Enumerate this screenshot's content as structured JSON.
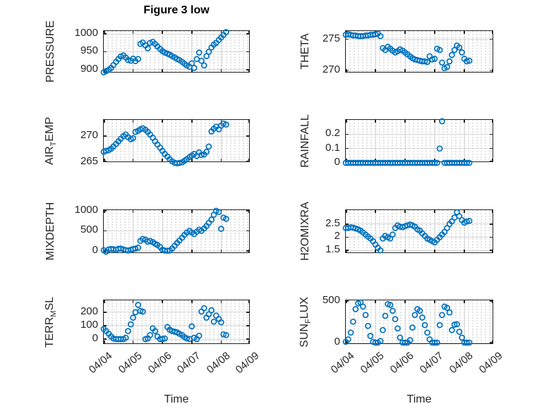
{
  "figure_title": "Figure 3 low",
  "style": {
    "marker_color": "#0072BD",
    "axis_color": "#262626",
    "grid_color": "#d6d6d6",
    "minor_dot_color": "#d9d9d9",
    "background": "#ffffff"
  },
  "x_axis": {
    "xlim": [
      4,
      9
    ],
    "ticks": [
      4,
      5,
      6,
      7,
      8,
      9
    ],
    "tick_labels": [
      "04/04",
      "04/05",
      "04/06",
      "04/07",
      "04/08",
      "04/09"
    ],
    "title": "Time"
  },
  "chart_data": {
    "type": "scatter",
    "title": "Figure 3 low",
    "xlabel": "Time",
    "x": [
      4,
      4.08,
      4.17,
      4.25,
      4.33,
      4.42,
      4.5,
      4.58,
      4.67,
      4.75,
      4.83,
      4.92,
      5,
      5.08,
      5.17,
      5.25,
      5.33,
      5.42,
      5.5,
      5.58,
      5.67,
      5.75,
      5.83,
      5.92,
      6,
      6.08,
      6.17,
      6.25,
      6.33,
      6.42,
      6.5,
      6.58,
      6.67,
      6.75,
      6.83,
      6.92,
      7,
      7.08,
      7.17,
      7.25,
      7.33,
      7.42,
      7.5,
      7.58,
      7.67,
      7.75,
      7.83,
      7.92,
      8,
      8.08,
      8.17
    ],
    "series": [
      {
        "name": "PRESSURE",
        "row": 0,
        "col": 0,
        "label_parts": [
          {
            "text": "PRESSURE"
          }
        ],
        "ylim": [
          890,
          1008
        ],
        "yticks": [
          900,
          950,
          1000
        ],
        "ytick_labels": [
          "900",
          "950",
          "1000"
        ],
        "y": [
          893,
          896,
          900,
          905,
          913,
          922,
          930,
          937,
          940,
          934,
          927,
          925,
          931,
          924,
          930,
          972,
          976,
          968,
          960,
          975,
          978,
          972,
          965,
          958,
          952,
          948,
          945,
          942,
          938,
          934,
          930,
          927,
          922,
          917,
          912,
          908,
          918,
          905,
          930,
          948,
          925,
          912,
          938,
          950,
          962,
          970,
          975,
          983,
          990,
          997,
          1005
        ]
      },
      {
        "name": "THETA",
        "row": 0,
        "col": 1,
        "label_parts": [
          {
            "text": "THETA"
          }
        ],
        "ylim": [
          269.6,
          276.3
        ],
        "yticks": [
          270,
          275
        ],
        "ytick_labels": [
          "270",
          "275"
        ],
        "y": [
          275.7,
          275.8,
          275.7,
          275.6,
          275.6,
          275.5,
          275.5,
          275.5,
          275.6,
          275.6,
          275.7,
          275.7,
          275.8,
          275.9,
          275.5,
          273.6,
          273.3,
          273.8,
          273.5,
          273.2,
          272.9,
          273.1,
          273.4,
          273.2,
          272.9,
          272.6,
          272.3,
          272.0,
          271.8,
          271.7,
          271.6,
          271.5,
          271.5,
          271.4,
          272.3,
          271.8,
          271.9,
          273.5,
          273.3,
          271.3,
          270.4,
          270.6,
          271.5,
          272.5,
          273.3,
          274.0,
          273.7,
          272.9,
          271.9,
          271.5,
          271.6
        ]
      },
      {
        "name": "AIR_TEMP",
        "row": 1,
        "col": 0,
        "label_parts": [
          {
            "text": "AIR"
          },
          {
            "text": "T",
            "sub": true
          },
          {
            "text": "EMP"
          }
        ],
        "ylim": [
          264.9,
          273.1
        ],
        "yticks": [
          265,
          270
        ],
        "ytick_labels": [
          "265",
          "270"
        ],
        "y": [
          267.0,
          267.2,
          267.3,
          267.6,
          268.0,
          268.5,
          269.0,
          269.5,
          270.0,
          270.3,
          269.8,
          269.4,
          269.6,
          270.8,
          271.0,
          271.3,
          271.5,
          271.2,
          270.8,
          270.3,
          269.7,
          269.0,
          268.4,
          267.8,
          267.2,
          266.6,
          266.1,
          265.6,
          265.2,
          264.9,
          264.8,
          264.9,
          265.0,
          265.3,
          265.6,
          266.0,
          266.3,
          266.6,
          266.2,
          266.9,
          266.4,
          266.5,
          267.0,
          268.0,
          270.9,
          271.4,
          271.8,
          271.3,
          272.0,
          272.4,
          272.2
        ]
      },
      {
        "name": "RAINFALL",
        "row": 1,
        "col": 1,
        "label_parts": [
          {
            "text": "RAINFALL"
          }
        ],
        "ylim": [
          0,
          0.3
        ],
        "yticks": [
          0,
          0.1,
          0.2
        ],
        "ytick_labels": [
          "0",
          "0.1",
          "0.2"
        ],
        "y": [
          0,
          0,
          0,
          0,
          0,
          0,
          0,
          0,
          0,
          0,
          0,
          0,
          0,
          0,
          0,
          0,
          0,
          0,
          0,
          0,
          0,
          0,
          0,
          0,
          0,
          0,
          0,
          0,
          0,
          0,
          0,
          0,
          0,
          0,
          0,
          0,
          0,
          0,
          0.1,
          0.29,
          0,
          0,
          0,
          0,
          0,
          0,
          0,
          0,
          0,
          0,
          0
        ]
      },
      {
        "name": "MIXDEPTH",
        "row": 2,
        "col": 0,
        "label_parts": [
          {
            "text": "MIXDEPTH"
          }
        ],
        "ylim": [
          -70,
          1017
        ],
        "yticks": [
          0,
          500,
          1000
        ],
        "ytick_labels": [
          "0",
          "500",
          "1000"
        ],
        "y": [
          20,
          -20,
          40,
          50,
          45,
          30,
          55,
          60,
          40,
          20,
          10,
          30,
          50,
          60,
          80,
          250,
          300,
          280,
          230,
          250,
          220,
          180,
          150,
          100,
          30,
          10,
          5,
          10,
          60,
          130,
          200,
          260,
          330,
          400,
          460,
          500,
          460,
          420,
          480,
          530,
          500,
          560,
          620,
          700,
          780,
          900,
          1000,
          970,
          550,
          830,
          800
        ]
      },
      {
        "name": "H2OMIXRA",
        "row": 2,
        "col": 1,
        "label_parts": [
          {
            "text": "H2OMIXRA"
          }
        ],
        "ylim": [
          1.37,
          3.03
        ],
        "yticks": [
          1.5,
          2,
          2.5
        ],
        "ytick_labels": [
          "1.5",
          "2",
          "2.5"
        ],
        "y": [
          2.35,
          2.35,
          2.38,
          2.36,
          2.33,
          2.3,
          2.25,
          2.18,
          2.1,
          2.02,
          1.95,
          1.85,
          1.72,
          1.6,
          1.5,
          1.95,
          2.05,
          2.0,
          1.95,
          2.1,
          2.35,
          2.45,
          2.4,
          2.38,
          2.42,
          2.45,
          2.48,
          2.45,
          2.4,
          2.3,
          2.25,
          2.15,
          2.05,
          1.95,
          1.9,
          1.85,
          1.8,
          1.9,
          2.0,
          2.1,
          2.2,
          2.35,
          2.5,
          2.6,
          2.75,
          2.95,
          2.8,
          2.65,
          2.55,
          2.6,
          2.62
        ]
      },
      {
        "name": "TERR_MSL",
        "row": 3,
        "col": 0,
        "label_parts": [
          {
            "text": "TERR"
          },
          {
            "text": "M",
            "sub": true
          },
          {
            "text": "SL"
          }
        ],
        "ylim": [
          -42,
          289
        ],
        "yticks": [
          0,
          100,
          200
        ],
        "ytick_labels": [
          "0",
          "100",
          "200"
        ],
        "y": [
          75,
          60,
          40,
          20,
          5,
          0,
          0,
          0,
          0,
          10,
          60,
          110,
          160,
          200,
          255,
          210,
          205,
          0,
          5,
          30,
          80,
          60,
          20,
          0,
          0,
          5,
          90,
          70,
          60,
          55,
          50,
          40,
          30,
          15,
          5,
          0,
          95,
          10,
          0,
          25,
          205,
          230,
          160,
          185,
          215,
          130,
          175,
          150,
          125,
          35,
          30
        ]
      },
      {
        "name": "SUN_FLUX",
        "row": 3,
        "col": 1,
        "label_parts": [
          {
            "text": "SUN"
          },
          {
            "text": "F",
            "sub": true
          },
          {
            "text": "LUX"
          }
        ],
        "ylim": [
          -25,
          505
        ],
        "yticks": [
          0,
          500
        ],
        "ytick_labels": [
          "0",
          "500"
        ],
        "y": [
          10,
          40,
          120,
          250,
          400,
          470,
          480,
          430,
          330,
          200,
          80,
          10,
          0,
          0,
          20,
          150,
          320,
          460,
          450,
          380,
          280,
          170,
          60,
          0,
          0,
          0,
          30,
          180,
          330,
          400,
          380,
          300,
          210,
          120,
          40,
          0,
          0,
          0,
          210,
          330,
          430,
          415,
          360,
          150,
          215,
          220,
          130,
          60,
          0,
          0,
          0
        ]
      }
    ]
  }
}
